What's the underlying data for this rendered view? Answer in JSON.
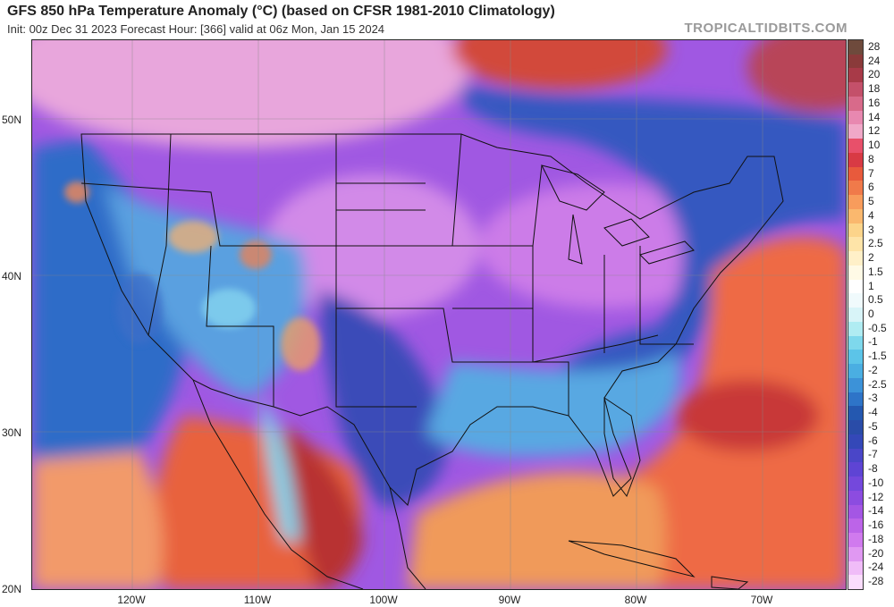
{
  "header": {
    "title": "GFS 850 hPa Temperature Anomaly (°C) (based on CFSR 1981-2010 Climatology)",
    "subtitle": "Init: 00z Dec 31 2023   Forecast Hour: [366]   valid at 06z Mon, Jan 15 2024",
    "brand": "TROPICALTIDBITS.COM"
  },
  "map": {
    "lat_labels": [
      "50N",
      "40N",
      "30N",
      "20N"
    ],
    "lon_labels": [
      "120W",
      "110W",
      "100W",
      "90W",
      "80W",
      "70W"
    ]
  },
  "colorbar": {
    "labels": [
      "28",
      "24",
      "20",
      "18",
      "16",
      "14",
      "12",
      "10",
      "8",
      "7",
      "6",
      "5",
      "4",
      "3",
      "2.5",
      "2",
      "1.5",
      "1",
      "0.5",
      "0",
      "-0.5",
      "-1",
      "-1.5",
      "-2",
      "-2.5",
      "-3",
      "-4",
      "-5",
      "-6",
      "-7",
      "-8",
      "-10",
      "-12",
      "-14",
      "-16",
      "-18",
      "-20",
      "-24",
      "-28"
    ],
    "colors": [
      "#6e4a3c",
      "#8a3a3a",
      "#a83a48",
      "#c4506a",
      "#d86a8a",
      "#e888b0",
      "#f0a8c8",
      "#e8506a",
      "#d83a44",
      "#e85a3c",
      "#f07a4a",
      "#f89c5c",
      "#fab86e",
      "#fcd48a",
      "#fee4a8",
      "#fff0c8",
      "#fffae6",
      "#ffffff",
      "#f0fafc",
      "#d8f4f8",
      "#b0ecf2",
      "#7ed8ec",
      "#5cc4e8",
      "#4aaee2",
      "#3c92d8",
      "#2e74c8",
      "#2458b0",
      "#2a4ca8",
      "#3448b8",
      "#4a46c8",
      "#5e44d4",
      "#7448dc",
      "#8c4ce0",
      "#a456e4",
      "#bc64e8",
      "#d07aee",
      "#e098f2",
      "#f0bcf8",
      "#fadcfc"
    ],
    "color_legend_title": ""
  }
}
